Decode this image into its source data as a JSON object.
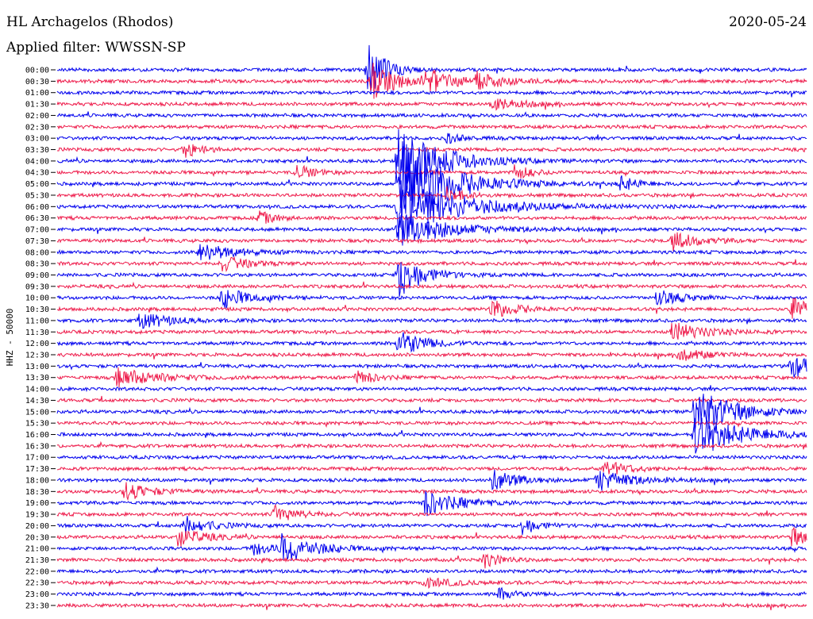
{
  "header": {
    "station": "HL Archagelos (Rhodos)",
    "date": "2020-05-24",
    "filter": "Applied filter: WWSSN-SP"
  },
  "chart_data": {
    "type": "line",
    "title": "HL Archagelos (Rhodos)",
    "ylabel": "HHZ - 50000",
    "colors": {
      "even_trace": "#0000ee",
      "odd_trace": "#ee1a4a"
    },
    "grid": false,
    "traces": [
      "00:00",
      "00:30",
      "01:00",
      "01:30",
      "02:00",
      "02:30",
      "03:00",
      "03:30",
      "04:00",
      "04:30",
      "05:00",
      "05:30",
      "06:00",
      "06:30",
      "07:00",
      "07:30",
      "08:00",
      "08:30",
      "09:00",
      "09:30",
      "10:00",
      "10:30",
      "11:00",
      "11:30",
      "12:00",
      "12:30",
      "13:00",
      "13:30",
      "14:00",
      "14:30",
      "15:00",
      "15:30",
      "16:00",
      "16:30",
      "17:00",
      "17:30",
      "18:00",
      "18:30",
      "19:00",
      "19:30",
      "20:00",
      "20:30",
      "21:00",
      "21:30",
      "22:00",
      "22:30",
      "23:00",
      "23:30"
    ],
    "events": [
      {
        "trace": 0,
        "pos": 0.415,
        "amp": 40,
        "dur": 0.02
      },
      {
        "trace": 1,
        "pos": 0.42,
        "amp": 24,
        "dur": 0.03
      },
      {
        "trace": 1,
        "pos": 0.49,
        "amp": 15,
        "dur": 0.04
      },
      {
        "trace": 1,
        "pos": 0.56,
        "amp": 10,
        "dur": 0.03
      },
      {
        "trace": 3,
        "pos": 0.58,
        "amp": 7,
        "dur": 0.04
      },
      {
        "trace": 6,
        "pos": 0.52,
        "amp": 6,
        "dur": 0.02
      },
      {
        "trace": 7,
        "pos": 0.17,
        "amp": 10,
        "dur": 0.02
      },
      {
        "trace": 8,
        "pos": 0.455,
        "amp": 48,
        "dur": 0.05
      },
      {
        "trace": 9,
        "pos": 0.32,
        "amp": 10,
        "dur": 0.02
      },
      {
        "trace": 9,
        "pos": 0.61,
        "amp": 10,
        "dur": 0.02
      },
      {
        "trace": 10,
        "pos": 0.455,
        "amp": 55,
        "dur": 0.06
      },
      {
        "trace": 10,
        "pos": 0.75,
        "amp": 10,
        "dur": 0.02
      },
      {
        "trace": 11,
        "pos": 0.52,
        "amp": 10,
        "dur": 0.02
      },
      {
        "trace": 12,
        "pos": 0.455,
        "amp": 34,
        "dur": 0.08
      },
      {
        "trace": 13,
        "pos": 0.27,
        "amp": 8,
        "dur": 0.02
      },
      {
        "trace": 14,
        "pos": 0.455,
        "amp": 22,
        "dur": 0.06
      },
      {
        "trace": 15,
        "pos": 0.82,
        "amp": 12,
        "dur": 0.03
      },
      {
        "trace": 16,
        "pos": 0.19,
        "amp": 12,
        "dur": 0.04
      },
      {
        "trace": 17,
        "pos": 0.22,
        "amp": 10,
        "dur": 0.03
      },
      {
        "trace": 18,
        "pos": 0.455,
        "amp": 30,
        "dur": 0.03
      },
      {
        "trace": 20,
        "pos": 0.22,
        "amp": 14,
        "dur": 0.03
      },
      {
        "trace": 20,
        "pos": 0.8,
        "amp": 10,
        "dur": 0.03
      },
      {
        "trace": 21,
        "pos": 0.58,
        "amp": 12,
        "dur": 0.03
      },
      {
        "trace": 21,
        "pos": 0.98,
        "amp": 14,
        "dur": 0.03
      },
      {
        "trace": 22,
        "pos": 0.11,
        "amp": 10,
        "dur": 0.04
      },
      {
        "trace": 23,
        "pos": 0.82,
        "amp": 12,
        "dur": 0.04
      },
      {
        "trace": 24,
        "pos": 0.455,
        "amp": 18,
        "dur": 0.03
      },
      {
        "trace": 25,
        "pos": 0.83,
        "amp": 10,
        "dur": 0.03
      },
      {
        "trace": 26,
        "pos": 0.98,
        "amp": 16,
        "dur": 0.03
      },
      {
        "trace": 27,
        "pos": 0.08,
        "amp": 12,
        "dur": 0.05
      },
      {
        "trace": 27,
        "pos": 0.4,
        "amp": 10,
        "dur": 0.02
      },
      {
        "trace": 30,
        "pos": 0.85,
        "amp": 30,
        "dur": 0.05
      },
      {
        "trace": 32,
        "pos": 0.85,
        "amp": 24,
        "dur": 0.06
      },
      {
        "trace": 35,
        "pos": 0.73,
        "amp": 10,
        "dur": 0.03
      },
      {
        "trace": 36,
        "pos": 0.58,
        "amp": 14,
        "dur": 0.03
      },
      {
        "trace": 36,
        "pos": 0.72,
        "amp": 14,
        "dur": 0.04
      },
      {
        "trace": 37,
        "pos": 0.09,
        "amp": 12,
        "dur": 0.03
      },
      {
        "trace": 38,
        "pos": 0.49,
        "amp": 16,
        "dur": 0.04
      },
      {
        "trace": 39,
        "pos": 0.29,
        "amp": 10,
        "dur": 0.03
      },
      {
        "trace": 40,
        "pos": 0.17,
        "amp": 12,
        "dur": 0.03
      },
      {
        "trace": 40,
        "pos": 0.62,
        "amp": 12,
        "dur": 0.02
      },
      {
        "trace": 41,
        "pos": 0.16,
        "amp": 12,
        "dur": 0.03
      },
      {
        "trace": 41,
        "pos": 0.98,
        "amp": 12,
        "dur": 0.02
      },
      {
        "trace": 42,
        "pos": 0.3,
        "amp": 18,
        "dur": 0.04
      },
      {
        "trace": 42,
        "pos": 0.26,
        "amp": 8,
        "dur": 0.03
      },
      {
        "trace": 43,
        "pos": 0.57,
        "amp": 10,
        "dur": 0.02
      },
      {
        "trace": 45,
        "pos": 0.49,
        "amp": 6,
        "dur": 0.04
      },
      {
        "trace": 46,
        "pos": 0.59,
        "amp": 8,
        "dur": 0.02
      }
    ]
  }
}
